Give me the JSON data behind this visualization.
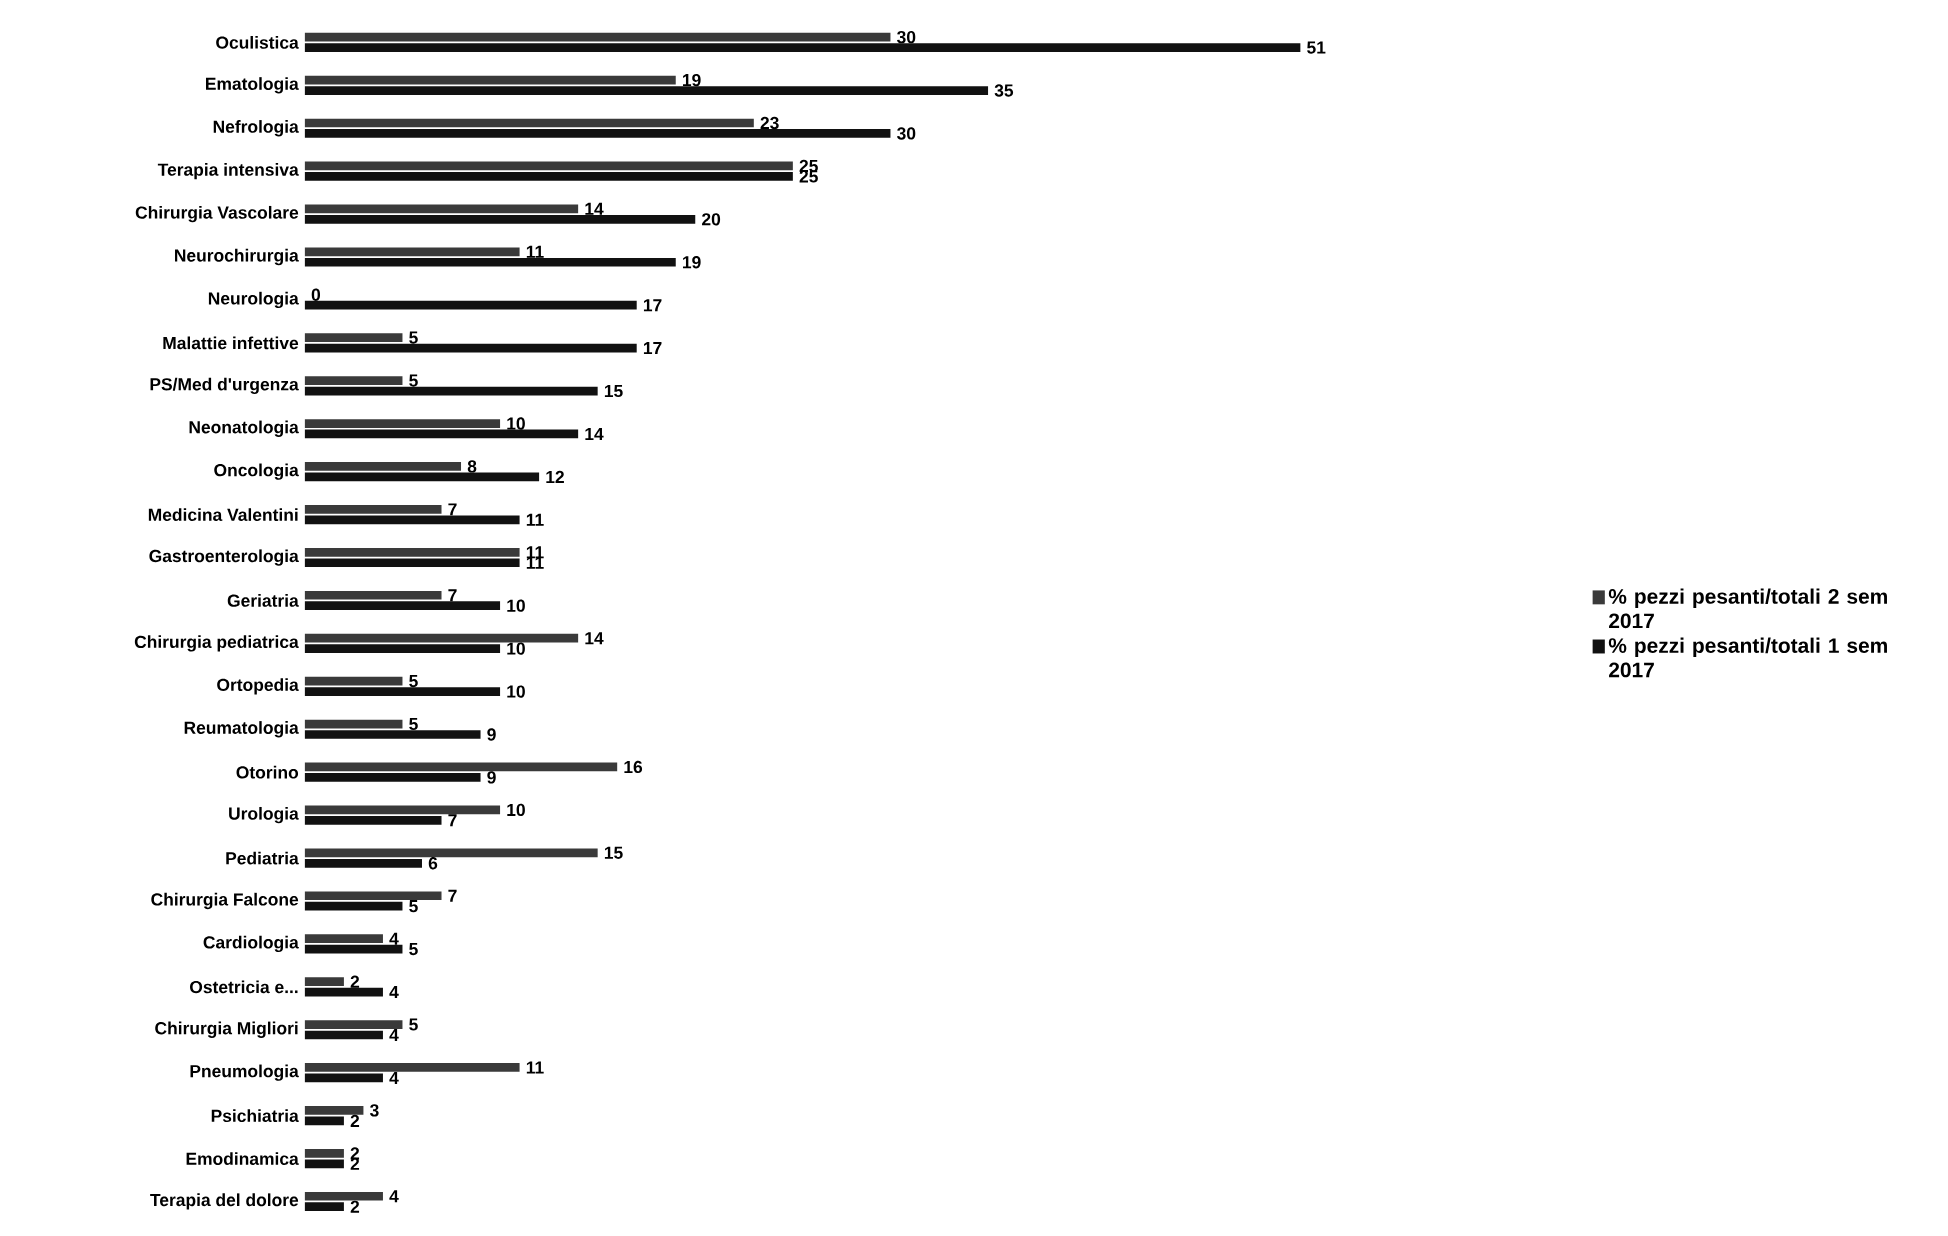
{
  "chart_data": {
    "type": "bar",
    "orientation": "horizontal",
    "data_labels": true,
    "legend": "right",
    "categories": [
      "Oculistica",
      "Ematologia",
      "Nefrologia",
      "Terapia intensiva",
      "Chirurgia Vascolare",
      "Neurochirurgia",
      "Neurologia",
      "Malattie infettive",
      "PS/Med d'urgenza",
      "Neonatologia",
      "Oncologia",
      "Medicina Valentini",
      "Gastroenterologia",
      "Geriatria",
      "Chirurgia pediatrica",
      "Ortopedia",
      "Reumatologia",
      "Otorino",
      "Urologia",
      "Pediatria",
      "Chirurgia Falcone",
      "Cardiologia",
      "Ostetricia e...",
      "Chirurgia Migliori",
      "Pneumologia",
      "Psichiatria",
      "Emodinamica",
      "Terapia del dolore"
    ],
    "series": [
      {
        "name": "% pezzi pesanti/totali 2 sem 2017",
        "color": "#3a3a3a",
        "values": [
          30,
          19,
          23,
          25,
          14,
          11,
          0,
          5,
          5,
          10,
          8,
          7,
          11,
          7,
          14,
          5,
          5,
          16,
          10,
          15,
          7,
          4,
          2,
          5,
          11,
          3,
          2,
          4
        ]
      },
      {
        "name": "% pezzi pesanti/totali 1 sem 2017",
        "color": "#111111",
        "values": [
          51,
          35,
          30,
          25,
          20,
          19,
          17,
          17,
          15,
          14,
          12,
          11,
          11,
          10,
          10,
          10,
          9,
          9,
          7,
          6,
          5,
          5,
          4,
          4,
          4,
          2,
          2,
          2
        ]
      }
    ]
  }
}
